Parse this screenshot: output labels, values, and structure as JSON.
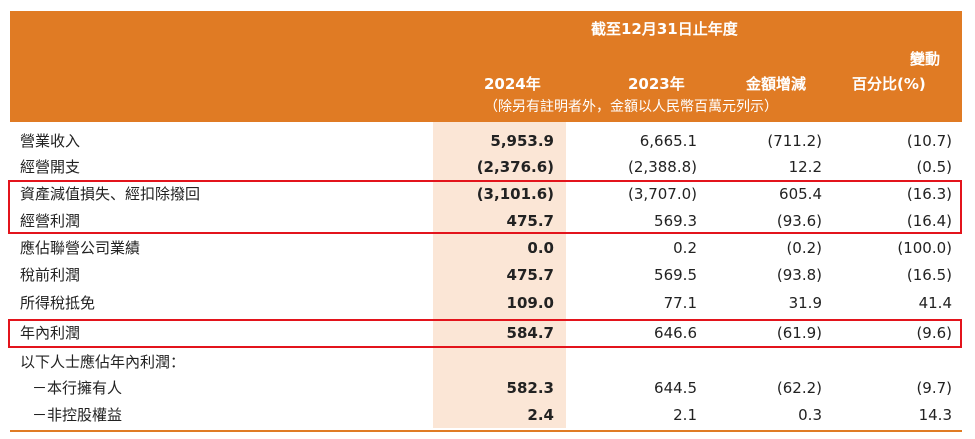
{
  "header": {
    "period_label": "截至12月31日止年度",
    "columns": [
      {
        "label": "2024年"
      },
      {
        "label": "2023年"
      },
      {
        "label": "金額增減"
      },
      {
        "label_line1": "變動",
        "label_line2": "百分比(%)"
      }
    ],
    "note": "（除另有註明者外，金額以人民幣百萬元列示）"
  },
  "rows": [
    {
      "label": "營業收入",
      "v2024": "5,953.9",
      "v2023": "6,665.1",
      "change": "(711.2)",
      "pct": "(10.7)"
    },
    {
      "label": "經營開支",
      "v2024": "(2,376.6)",
      "v2023": "(2,388.8)",
      "change": "12.2",
      "pct": "(0.5)"
    },
    {
      "label": "資產減值損失、經扣除撥回",
      "v2024": "(3,101.6)",
      "v2023": "(3,707.0)",
      "change": "605.4",
      "pct": "(16.3)"
    },
    {
      "label": "經營利潤",
      "v2024": "475.7",
      "v2023": "569.3",
      "change": "(93.6)",
      "pct": "(16.4)"
    },
    {
      "label": "應佔聯營公司業績",
      "v2024": "0.0",
      "v2023": "0.2",
      "change": "(0.2)",
      "pct": "(100.0)"
    },
    {
      "label": "稅前利潤",
      "v2024": "475.7",
      "v2023": "569.5",
      "change": "(93.8)",
      "pct": "(16.5)"
    },
    {
      "label": "所得稅抵免",
      "v2024": "109.0",
      "v2023": "77.1",
      "change": "31.9",
      "pct": "41.4"
    },
    {
      "label": "年內利潤",
      "v2024": "584.7",
      "v2023": "646.6",
      "change": "(61.9)",
      "pct": "(9.6)"
    },
    {
      "label": "以下人士應佔年內利潤："
    },
    {
      "label": "－本行擁有人",
      "v2024": "582.3",
      "v2023": "644.5",
      "change": "(62.2)",
      "pct": "(9.7)"
    },
    {
      "label": "－非控股權益",
      "v2024": "2.4",
      "v2023": "2.1",
      "change": "0.3",
      "pct": "14.3"
    }
  ],
  "colors": {
    "header": "#e07b24",
    "highlight": "#fbe6d6",
    "box": "#e3141c"
  }
}
